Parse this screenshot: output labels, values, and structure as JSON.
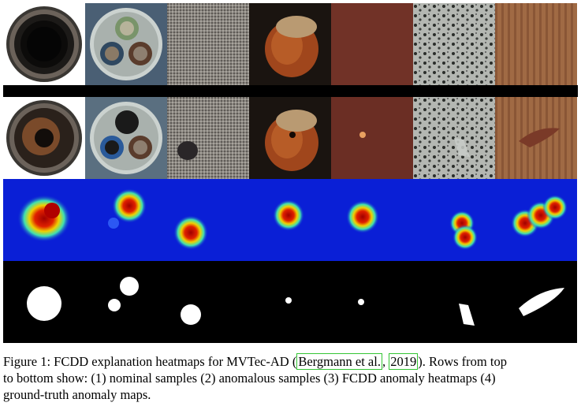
{
  "figure": {
    "caption_label": "Figure 1:",
    "caption_line1_a": "FCDD explanation heatmaps for MVTec-AD (",
    "cite_author": "Bergmann et al.",
    "cite_sep": ", ",
    "cite_year": "2019",
    "caption_line1_b": "). Rows from top",
    "caption_line2": "to bottom show: (1) nominal samples (2) anomalous samples (3) FCDD anomaly heatmaps (4)",
    "caption_line3": "ground-truth anomaly maps.",
    "rows": [
      "nominal samples",
      "anomalous samples",
      "FCDD anomaly heatmaps",
      "ground-truth anomaly maps"
    ],
    "columns": [
      "bottle",
      "cable",
      "carpet",
      "hazelnut",
      "leather",
      "tile",
      "wood"
    ],
    "colors": {
      "heatmap_background": "#0a1fd6",
      "heatmap_hot": "#b00000",
      "mask": "#ffffff",
      "mask_background": "#000000",
      "citation_box": "#34c534"
    }
  }
}
